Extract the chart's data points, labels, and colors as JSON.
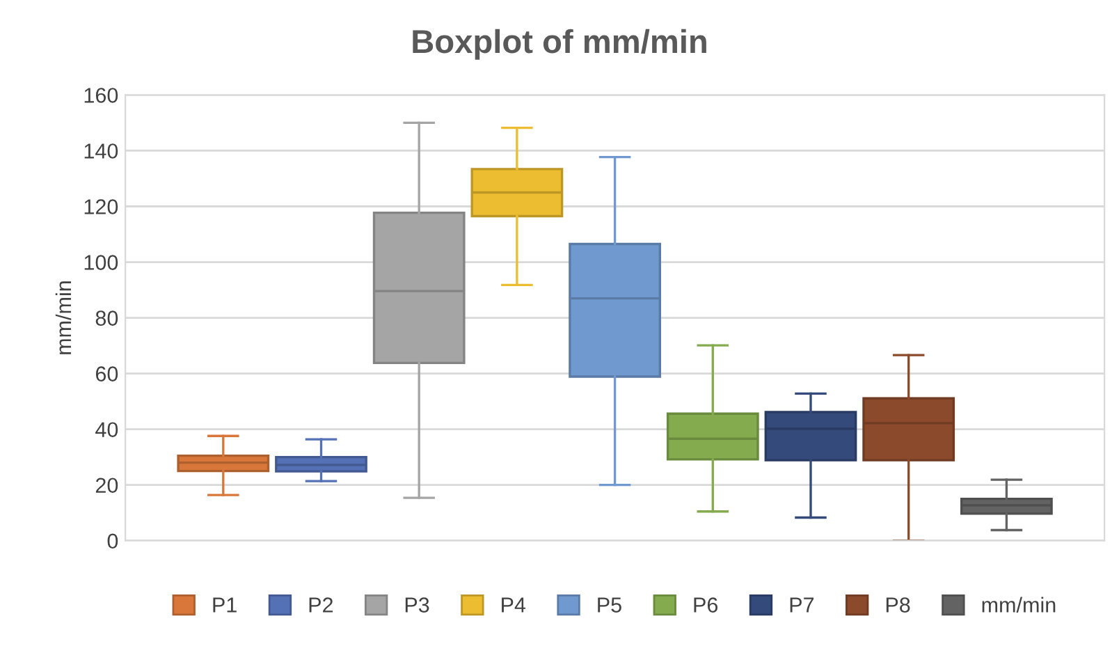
{
  "chart_data": {
    "type": "box",
    "title": "Boxplot of mm/min",
    "ylabel": "mm/min",
    "categories": [
      null
    ],
    "series": [
      {
        "name": "P1",
        "color": "#d9773a",
        "boxes": [
          {
            "low": 16.4,
            "q1": 25,
            "median": 28,
            "q3": 30.5,
            "high": 37.6
          }
        ]
      },
      {
        "name": "P2",
        "color": "#5471b5",
        "boxes": [
          {
            "low": 21.4,
            "q1": 24.9,
            "median": 27.2,
            "q3": 30,
            "high": 36.4
          }
        ]
      },
      {
        "name": "P3",
        "color": "#a5a5a5",
        "boxes": [
          {
            "low": 15.4,
            "q1": 63.8,
            "median": 89.6,
            "q3": 117.7,
            "high": 150
          }
        ]
      },
      {
        "name": "P4",
        "color": "#ecbd30",
        "boxes": [
          {
            "low": 91.8,
            "q1": 116.5,
            "median": 125,
            "q3": 133.4,
            "high": 148.2
          }
        ]
      },
      {
        "name": "P5",
        "color": "#709acf",
        "boxes": [
          {
            "low": 20,
            "q1": 58.9,
            "median": 87,
            "q3": 106.5,
            "high": 137.7
          }
        ]
      },
      {
        "name": "P6",
        "color": "#84ac4e",
        "boxes": [
          {
            "low": 10.5,
            "q1": 29.2,
            "median": 36.6,
            "q3": 45.6,
            "high": 70.1
          }
        ]
      },
      {
        "name": "P7",
        "color": "#334a7a",
        "boxes": [
          {
            "low": 8.3,
            "q1": 28.9,
            "median": 40.2,
            "q3": 46.2,
            "high": 52.8
          }
        ]
      },
      {
        "name": "P8",
        "color": "#8b4a2b",
        "boxes": [
          {
            "low": 0,
            "q1": 28.9,
            "median": 42.2,
            "q3": 51.1,
            "high": 66.6
          }
        ]
      },
      {
        "name": "mm/min",
        "color": "#636363",
        "boxes": [
          {
            "low": 3.8,
            "q1": 9.7,
            "median": 12.7,
            "q3": 15,
            "high": 21.9
          }
        ]
      }
    ],
    "ylim": [
      0,
      160
    ],
    "yticks": [
      0,
      20,
      40,
      60,
      80,
      100,
      120,
      140,
      160
    ],
    "grid": "y",
    "legend": "bottom",
    "tick_labels": "y"
  }
}
